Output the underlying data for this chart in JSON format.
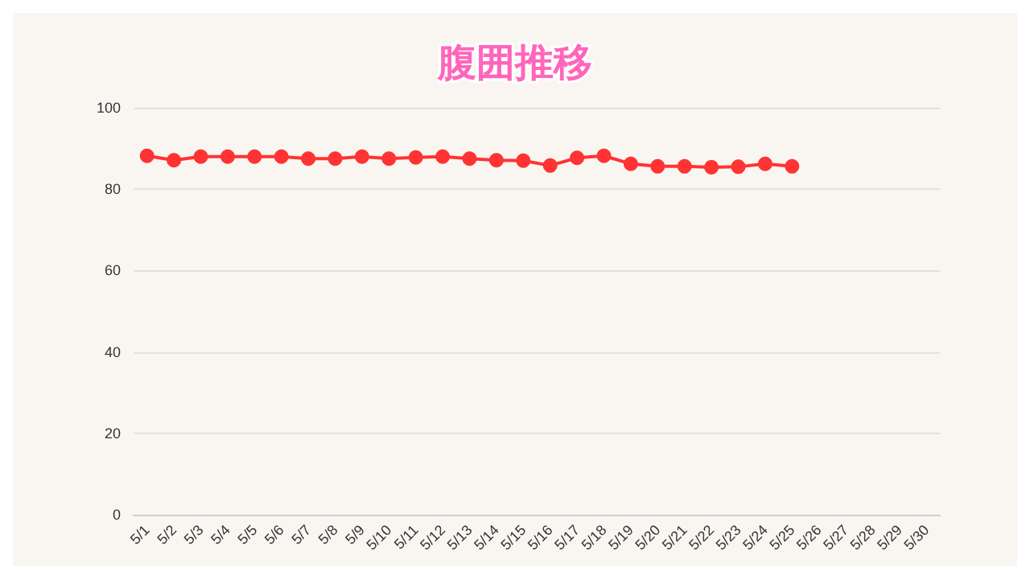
{
  "chart_data": {
    "type": "line",
    "title": "腹囲推移",
    "categories": [
      "5/1",
      "5/2",
      "5/3",
      "5/4",
      "5/5",
      "5/6",
      "5/7",
      "5/8",
      "5/9",
      "5/10",
      "5/11",
      "5/12",
      "5/13",
      "5/14",
      "5/15",
      "5/16",
      "5/17",
      "5/18",
      "5/19",
      "5/20",
      "5/21",
      "5/22",
      "5/23",
      "5/24",
      "5/25",
      "5/26",
      "5/27",
      "5/28",
      "5/29",
      "5/30"
    ],
    "series": [
      {
        "color": "#ff3333",
        "values": [
          88.2,
          87.1,
          88,
          88,
          88,
          88,
          87.5,
          87.5,
          88,
          87.5,
          87.8,
          88,
          87.5,
          87.1,
          87,
          85.8,
          87.7,
          88.2,
          86.2,
          85.6,
          85.6,
          85.4,
          85.5,
          86.2,
          85.6,
          null,
          null,
          null,
          null,
          null
        ]
      }
    ],
    "ylim": [
      0,
      100
    ],
    "yticks": [
      0,
      20,
      40,
      60,
      80,
      100
    ],
    "grid": "y",
    "marker": "circle",
    "line_style": "solid"
  }
}
